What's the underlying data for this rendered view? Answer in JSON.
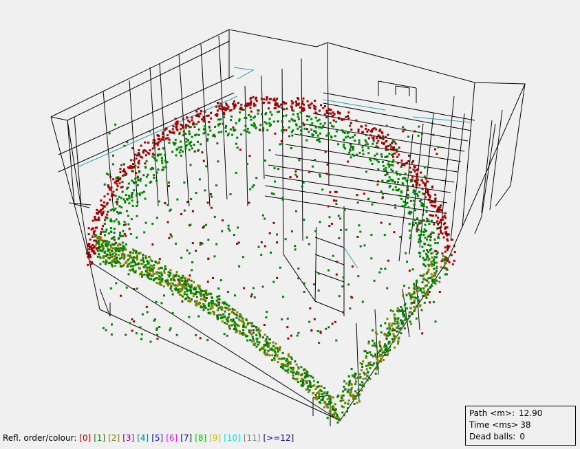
{
  "legend": {
    "label": "Refl. order/colour:",
    "items": [
      {
        "text": "[0]",
        "color": "#a00000"
      },
      {
        "text": "[1]",
        "color": "#008000"
      },
      {
        "text": "[2]",
        "color": "#808000"
      },
      {
        "text": "[3]",
        "color": "#800080"
      },
      {
        "text": "[4]",
        "color": "#008080"
      },
      {
        "text": "[5]",
        "color": "#0000ff"
      },
      {
        "text": "[6]",
        "color": "#ff00ff"
      },
      {
        "text": "[7]",
        "color": "#000080"
      },
      {
        "text": "[8]",
        "color": "#00c000"
      },
      {
        "text": "[9]",
        "color": "#c0c000"
      },
      {
        "text": "[10]",
        "color": "#00e0e0"
      },
      {
        "text": "[11]",
        "color": "#808080"
      },
      {
        "text": "[>=12]",
        "color": "#000080"
      }
    ]
  },
  "stats": {
    "path_label": "Path <m>:",
    "path_value": "12.90",
    "time_label": "Time <ms>",
    "time_value": "38",
    "dead_label": "Dead balls:",
    "dead_value": "0"
  },
  "colors": {
    "background": "#f0f0f0",
    "wire": "#000000",
    "wire_accent": "#20a0b0",
    "order0": "#a00000",
    "order1": "#008000",
    "order2": "#808000"
  }
}
